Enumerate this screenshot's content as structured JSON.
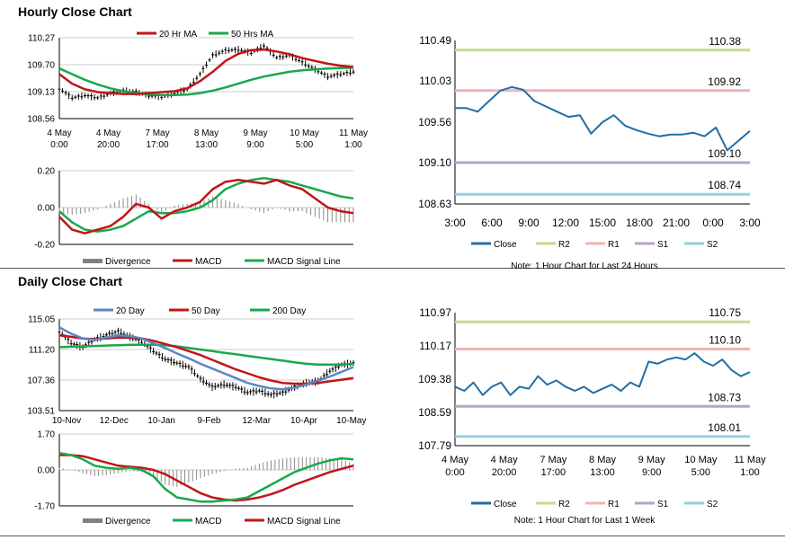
{
  "hourly": {
    "title": "Hourly Close Chart",
    "price_panel": {
      "legend": [
        {
          "label": "20 Hr MA",
          "color": "#c0151b"
        },
        {
          "label": "50 Hrs MA",
          "color": "#1aa84b"
        }
      ],
      "y_ticks": [
        "110.27",
        "109.70",
        "109.13",
        "108.56"
      ],
      "x_ticks": [
        [
          "4 May",
          "0:00"
        ],
        [
          "4 May",
          "20:00"
        ],
        [
          "7 May",
          "17:00"
        ],
        [
          "8 May",
          "13:00"
        ],
        [
          "9 May",
          "9:00"
        ],
        [
          "10 May",
          "5:00"
        ],
        [
          "11 May",
          "1:00"
        ]
      ]
    },
    "macd_panel": {
      "y_ticks": [
        "0.20",
        "0.00",
        "-0.20"
      ],
      "legend": [
        {
          "label": "Divergence",
          "color": "#808080"
        },
        {
          "label": "MACD",
          "color": "#c0151b"
        },
        {
          "label": "MACD Signal Line",
          "color": "#1aa84b"
        }
      ]
    }
  },
  "daily": {
    "title": "Daily Close Chart",
    "price_panel": {
      "legend": [
        {
          "label": "20 Day",
          "color": "#5b86c4"
        },
        {
          "label": "50 Day",
          "color": "#c0151b"
        },
        {
          "label": "200 Day",
          "color": "#1aa84b"
        }
      ],
      "y_ticks": [
        "115.05",
        "111.20",
        "107.36",
        "103.51"
      ],
      "x_ticks": [
        "10-Nov",
        "12-Dec",
        "10-Jan",
        "9-Feb",
        "12-Mar",
        "10-Apr",
        "10-May"
      ]
    },
    "macd_panel": {
      "y_ticks": [
        "1.70",
        "0.00",
        "-1.70"
      ],
      "legend": [
        {
          "label": "Divergence",
          "color": "#808080"
        },
        {
          "label": "MACD",
          "color": "#1aa84b"
        },
        {
          "label": "MACD Signal Line",
          "color": "#c0151b"
        }
      ]
    }
  },
  "pivot_hourly": {
    "y_ticks": [
      "110.49",
      "110.03",
      "109.56",
      "109.10",
      "108.63"
    ],
    "x_ticks": [
      "3:00",
      "6:00",
      "9:00",
      "12:00",
      "15:00",
      "18:00",
      "21:00",
      "0:00",
      "3:00"
    ],
    "levels": [
      {
        "name": "R2",
        "value": 110.38,
        "label": "110.38",
        "color": "#c3dc8e"
      },
      {
        "name": "R1",
        "value": 109.92,
        "label": "109.92",
        "color": "#eeb4b4"
      },
      {
        "name": "S1",
        "value": 109.1,
        "label": "109.10",
        "color": "#b7a2cb"
      },
      {
        "name": "S2",
        "value": 108.74,
        "label": "108.74",
        "color": "#8fd0e2"
      }
    ],
    "legend": [
      {
        "label": "Close",
        "color": "#1f6fa8"
      },
      {
        "label": "R2",
        "color": "#c3dc8e"
      },
      {
        "label": "R1",
        "color": "#eeb4b4"
      },
      {
        "label": "S1",
        "color": "#b7a2cb"
      },
      {
        "label": "S2",
        "color": "#8fd0e2"
      }
    ],
    "note": "Note: 1 Hour Chart for Last 24 Hours"
  },
  "pivot_weekly": {
    "y_ticks": [
      "110.97",
      "110.17",
      "109.38",
      "108.59",
      "107.79"
    ],
    "x_ticks": [
      [
        "4 May",
        "0:00"
      ],
      [
        "4 May",
        "20:00"
      ],
      [
        "7 May",
        "17:00"
      ],
      [
        "8 May",
        "13:00"
      ],
      [
        "9 May",
        "9:00"
      ],
      [
        "10 May",
        "5:00"
      ],
      [
        "11 May",
        "1:00"
      ]
    ],
    "levels": [
      {
        "name": "R2",
        "value": 110.75,
        "label": "110.75",
        "color": "#c3dc8e"
      },
      {
        "name": "R1",
        "value": 110.1,
        "label": "110.10",
        "color": "#eeb4b4"
      },
      {
        "name": "S1",
        "value": 108.73,
        "label": "108.73",
        "color": "#b7a2cb"
      },
      {
        "name": "S2",
        "value": 108.01,
        "label": "108.01",
        "color": "#8fd0e2"
      }
    ],
    "legend": [
      {
        "label": "Close",
        "color": "#1f6fa8"
      },
      {
        "label": "R2",
        "color": "#c3dc8e"
      },
      {
        "label": "R1",
        "color": "#eeb4b4"
      },
      {
        "label": "S1",
        "color": "#b7a2cb"
      },
      {
        "label": "S2",
        "color": "#8fd0e2"
      }
    ],
    "note": "Note: 1 Hour Chart for Last 1 Week"
  },
  "chart_data": [
    {
      "type": "line",
      "id": "hourly_price",
      "ylim": [
        108.56,
        110.27
      ],
      "x_count": 24,
      "series": [
        {
          "name": "20 Hr MA",
          "values": [
            109.5,
            109.3,
            109.18,
            109.12,
            109.1,
            109.08,
            109.08,
            109.1,
            109.12,
            109.14,
            109.2,
            109.35,
            109.55,
            109.78,
            109.93,
            110.01,
            110.02,
            109.98,
            109.92,
            109.84,
            109.78,
            109.72,
            109.68,
            109.65
          ]
        },
        {
          "name": "50 Hrs MA",
          "values": [
            109.62,
            109.5,
            109.38,
            109.28,
            109.2,
            109.14,
            109.1,
            109.07,
            109.06,
            109.06,
            109.07,
            109.1,
            109.15,
            109.22,
            109.3,
            109.38,
            109.45,
            109.5,
            109.55,
            109.58,
            109.6,
            109.62,
            109.63,
            109.64
          ]
        },
        {
          "name": "Close",
          "values": [
            109.2,
            109.0,
            109.05,
            109.0,
            109.1,
            109.15,
            109.12,
            109.05,
            109.02,
            109.1,
            109.18,
            109.5,
            109.9,
            110.0,
            110.02,
            109.95,
            110.1,
            109.85,
            109.9,
            109.75,
            109.6,
            109.45,
            109.5,
            109.55
          ]
        }
      ]
    },
    {
      "type": "line",
      "id": "hourly_macd",
      "ylim": [
        -0.2,
        0.2
      ],
      "x_count": 24,
      "series": [
        {
          "name": "MACD",
          "values": [
            -0.05,
            -0.12,
            -0.14,
            -0.12,
            -0.1,
            -0.05,
            0.02,
            0.0,
            -0.06,
            -0.02,
            0.0,
            0.03,
            0.1,
            0.14,
            0.15,
            0.14,
            0.13,
            0.15,
            0.12,
            0.1,
            0.05,
            0.0,
            -0.02,
            -0.03
          ]
        },
        {
          "name": "MACD Signal Line",
          "values": [
            -0.02,
            -0.08,
            -0.12,
            -0.13,
            -0.12,
            -0.1,
            -0.06,
            -0.02,
            -0.03,
            -0.03,
            -0.02,
            0.0,
            0.04,
            0.1,
            0.13,
            0.15,
            0.16,
            0.15,
            0.14,
            0.12,
            0.1,
            0.08,
            0.06,
            0.05
          ]
        },
        {
          "name": "Divergence",
          "values": [
            -0.03,
            -0.04,
            -0.03,
            -0.01,
            0.02,
            0.05,
            0.07,
            0.02,
            -0.03,
            0.01,
            0.02,
            0.03,
            0.06,
            0.04,
            0.02,
            -0.01,
            -0.03,
            0.0,
            -0.02,
            -0.02,
            -0.05,
            -0.08,
            -0.08,
            -0.08
          ]
        }
      ]
    },
    {
      "type": "line",
      "id": "daily_price",
      "ylim": [
        103.51,
        115.05
      ],
      "x_count": 26,
      "series": [
        {
          "name": "20 Day",
          "values": [
            114.0,
            113.2,
            112.6,
            112.4,
            112.7,
            113.0,
            112.9,
            112.6,
            112.0,
            111.4,
            110.7,
            110.1,
            109.4,
            108.8,
            108.2,
            107.6,
            107.0,
            106.6,
            106.3,
            106.2,
            106.4,
            106.8,
            107.3,
            107.8,
            108.4,
            109.0
          ]
        },
        {
          "name": "50 Day",
          "values": [
            113.0,
            112.8,
            112.6,
            112.5,
            112.6,
            112.7,
            112.7,
            112.6,
            112.3,
            111.9,
            111.5,
            111.0,
            110.5,
            109.9,
            109.3,
            108.7,
            108.2,
            107.7,
            107.3,
            107.0,
            106.9,
            106.9,
            107.0,
            107.2,
            107.4,
            107.6
          ]
        },
        {
          "name": "200 Day",
          "values": [
            111.5,
            111.55,
            111.6,
            111.65,
            111.7,
            111.75,
            111.8,
            111.8,
            111.8,
            111.75,
            111.6,
            111.4,
            111.2,
            111.0,
            110.8,
            110.6,
            110.4,
            110.2,
            110.0,
            109.8,
            109.6,
            109.4,
            109.3,
            109.3,
            109.3,
            109.4
          ]
        },
        {
          "name": "Close",
          "values": [
            113.5,
            112.0,
            111.5,
            112.5,
            113.0,
            113.5,
            112.8,
            112.2,
            111.0,
            110.0,
            109.5,
            109.0,
            107.5,
            106.5,
            106.8,
            106.5,
            105.8,
            106.0,
            105.5,
            105.8,
            106.5,
            107.0,
            107.2,
            108.5,
            109.3,
            109.5
          ]
        }
      ]
    },
    {
      "type": "line",
      "id": "daily_macd",
      "ylim": [
        -1.7,
        1.7
      ],
      "x_count": 26,
      "series": [
        {
          "name": "MACD",
          "values": [
            0.8,
            0.7,
            0.5,
            0.2,
            0.1,
            0.05,
            0.1,
            0.0,
            -0.3,
            -0.9,
            -1.3,
            -1.4,
            -1.5,
            -1.5,
            -1.45,
            -1.4,
            -1.3,
            -1.0,
            -0.7,
            -0.4,
            -0.1,
            0.1,
            0.3,
            0.45,
            0.55,
            0.5
          ]
        },
        {
          "name": "MACD Signal Line",
          "values": [
            0.7,
            0.7,
            0.65,
            0.5,
            0.35,
            0.2,
            0.15,
            0.1,
            0.0,
            -0.2,
            -0.5,
            -0.8,
            -1.1,
            -1.3,
            -1.4,
            -1.45,
            -1.4,
            -1.3,
            -1.15,
            -0.95,
            -0.7,
            -0.5,
            -0.3,
            -0.1,
            0.05,
            0.2
          ]
        },
        {
          "name": "Divergence",
          "values": [
            0.1,
            0.0,
            -0.15,
            -0.3,
            -0.25,
            -0.15,
            -0.05,
            -0.1,
            -0.3,
            -0.7,
            -0.8,
            -0.6,
            -0.4,
            -0.2,
            -0.05,
            0.05,
            0.1,
            0.3,
            0.45,
            0.55,
            0.6,
            0.6,
            0.6,
            0.55,
            0.5,
            0.3
          ]
        }
      ]
    },
    {
      "type": "line",
      "id": "pivot_hourly_close",
      "ylim": [
        108.63,
        110.49
      ],
      "x_labels": [
        "3:00",
        "6:00",
        "9:00",
        "12:00",
        "15:00",
        "18:00",
        "21:00",
        "0:00",
        "3:00"
      ],
      "series": [
        {
          "name": "Close",
          "values": [
            109.72,
            109.72,
            109.68,
            109.8,
            109.92,
            109.96,
            109.93,
            109.8,
            109.74,
            109.68,
            109.62,
            109.64,
            109.43,
            109.56,
            109.64,
            109.52,
            109.47,
            109.43,
            109.4,
            109.42,
            109.42,
            109.44,
            109.4,
            109.5,
            109.24,
            109.35,
            109.46
          ]
        }
      ]
    },
    {
      "type": "line",
      "id": "pivot_weekly_close",
      "ylim": [
        107.79,
        110.97
      ],
      "x_labels": [
        "4 May 0:00",
        "4 May 20:00",
        "7 May 17:00",
        "8 May 13:00",
        "9 May 9:00",
        "10 May 5:00",
        "11 May 1:00"
      ],
      "series": [
        {
          "name": "Close",
          "values": [
            109.2,
            109.1,
            109.3,
            109.0,
            109.2,
            109.3,
            109.0,
            109.2,
            109.15,
            109.45,
            109.25,
            109.35,
            109.2,
            109.1,
            109.2,
            109.05,
            109.15,
            109.25,
            109.1,
            109.3,
            109.2,
            109.8,
            109.75,
            109.85,
            109.9,
            109.85,
            110.0,
            109.8,
            109.7,
            109.85,
            109.6,
            109.45,
            109.55
          ]
        }
      ]
    }
  ]
}
